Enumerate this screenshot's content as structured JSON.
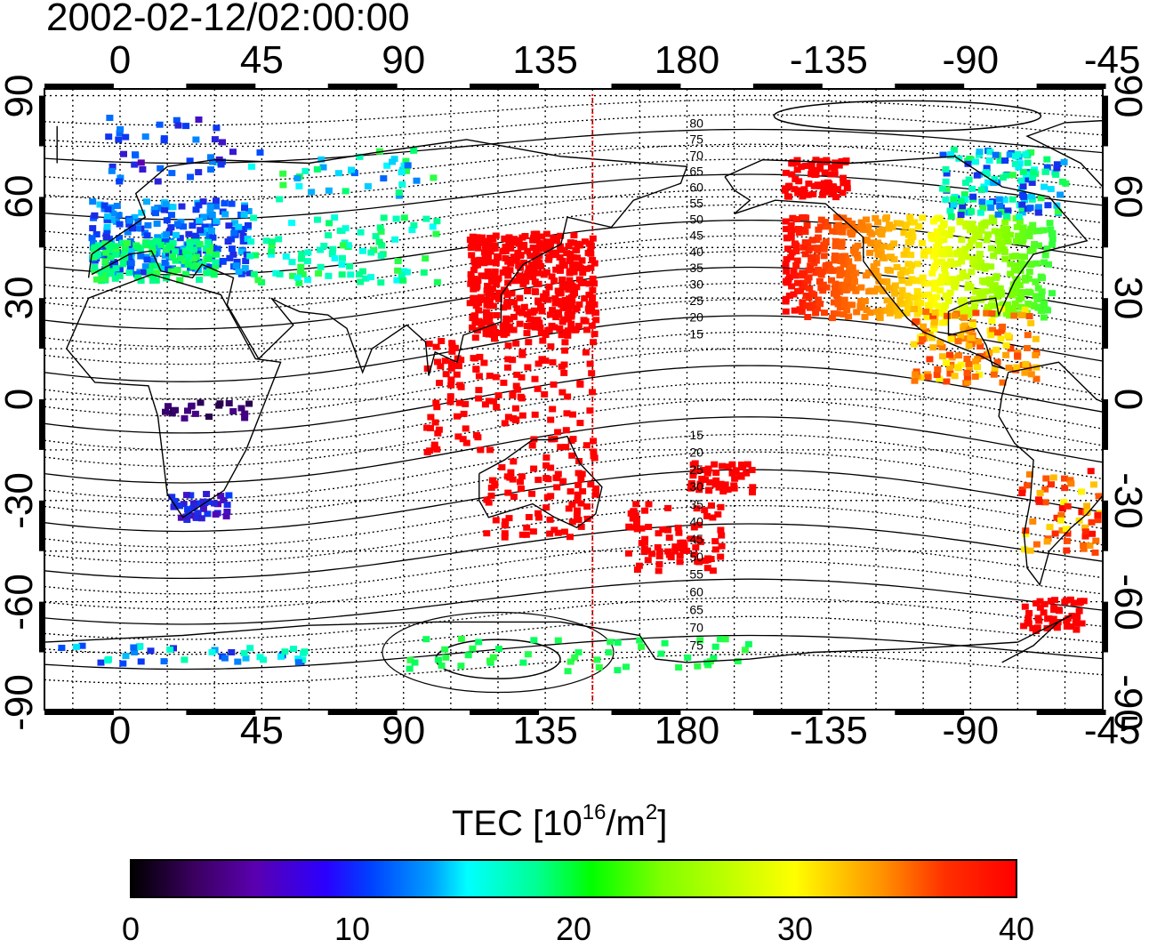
{
  "title": "2002-02-12/02:00:00",
  "map": {
    "lon_ticks": [
      "0",
      "45",
      "90",
      "135",
      "180",
      "-135",
      "-90",
      "-45"
    ],
    "lat_ticks": [
      "90",
      "60",
      "30",
      "0",
      "-30",
      "-60",
      "-90"
    ],
    "lon_range": [
      -24,
      312
    ],
    "lat_range": [
      -92,
      92
    ],
    "terminator_lon": 150,
    "contour_labels": [
      "80",
      "75",
      "70",
      "65",
      "60",
      "55",
      "50",
      "45",
      "40",
      "35",
      "30",
      "25",
      "20",
      "15",
      "15",
      "20",
      "25",
      "30",
      "35",
      "40",
      "45",
      "50",
      "55",
      "60",
      "65",
      "70",
      "75"
    ],
    "colors": {
      "terminator": "#ff0000",
      "frame": "#000000",
      "grid": "#000000"
    }
  },
  "colorbar": {
    "label": "TEC  [10",
    "label_sup1": "16",
    "label_mid": "/m",
    "label_sup2": "2",
    "label_end": "]",
    "ticks": [
      "0",
      "10",
      "20",
      "30",
      "40"
    ],
    "min": 0,
    "max": 40
  }
}
